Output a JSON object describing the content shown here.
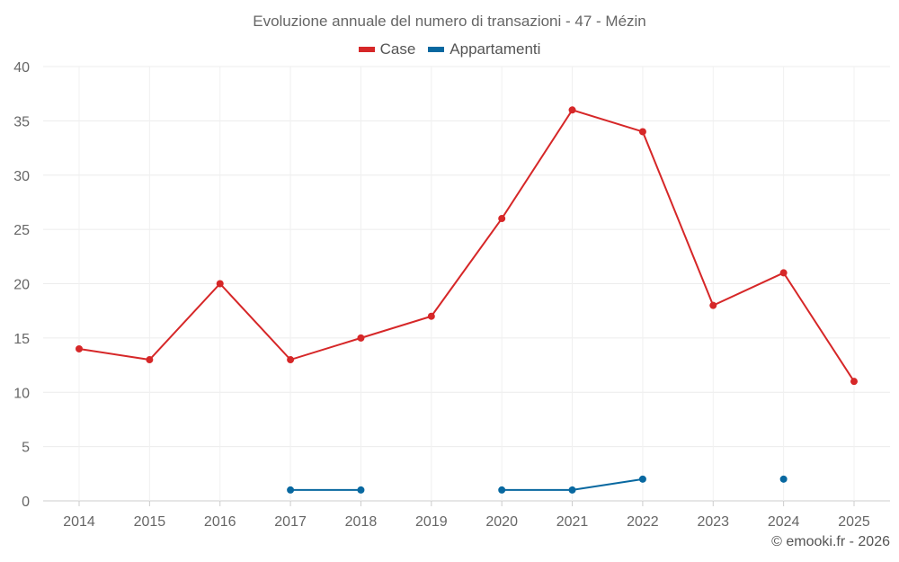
{
  "chart_data": {
    "type": "line",
    "title": "Evoluzione annuale del numero di transazioni - 47 - Mézin",
    "categories": [
      "2014",
      "2015",
      "2016",
      "2017",
      "2018",
      "2019",
      "2020",
      "2021",
      "2022",
      "2023",
      "2024",
      "2025"
    ],
    "series": [
      {
        "name": "Case",
        "color": "#d62728",
        "values": [
          14,
          13,
          20,
          13,
          15,
          17,
          26,
          36,
          34,
          18,
          21,
          11
        ]
      },
      {
        "name": "Appartamenti",
        "color": "#0868a0",
        "values": [
          null,
          null,
          null,
          1,
          1,
          null,
          1,
          1,
          2,
          null,
          2,
          null
        ]
      }
    ],
    "yticks": [
      "0",
      "5",
      "10",
      "15",
      "20",
      "25",
      "30",
      "35",
      "40"
    ],
    "ylim": [
      0,
      40
    ],
    "grid": true,
    "legend": "top-center",
    "xlabel": "",
    "ylabel": ""
  },
  "credit": "© emooki.fr - 2026"
}
